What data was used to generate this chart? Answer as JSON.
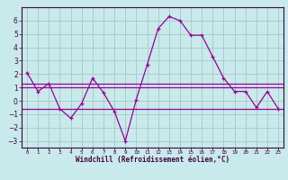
{
  "xlabel": "Windchill (Refroidissement éolien,°C)",
  "background_color": "#c8eaea",
  "grid_color": "#aacccc",
  "line_color": "#990099",
  "x_hours": [
    0,
    1,
    2,
    3,
    4,
    5,
    6,
    7,
    8,
    9,
    10,
    11,
    12,
    13,
    14,
    15,
    16,
    17,
    18,
    19,
    20,
    21,
    22,
    23
  ],
  "series_main": [
    2.1,
    0.7,
    1.3,
    -0.6,
    -1.3,
    -0.2,
    1.7,
    0.6,
    -0.8,
    -3.0,
    0.1,
    2.7,
    5.4,
    6.3,
    6.0,
    4.9,
    4.9,
    3.3,
    1.7,
    0.7,
    0.7,
    -0.5,
    0.7,
    -0.6
  ],
  "hline1": 1.3,
  "hline2": 1.0,
  "hline3": -0.6,
  "ylim": [
    -3.5,
    7.0
  ],
  "yticks": [
    -3,
    -2,
    -1,
    0,
    1,
    2,
    3,
    4,
    5,
    6
  ],
  "xtick_labels": [
    "0",
    "1",
    "2",
    "3",
    "4",
    "5",
    "6",
    "7",
    "8",
    "9",
    "10",
    "11",
    "12",
    "13",
    "14",
    "15",
    "16",
    "17",
    "18",
    "19",
    "20",
    "21",
    "22",
    "23"
  ]
}
